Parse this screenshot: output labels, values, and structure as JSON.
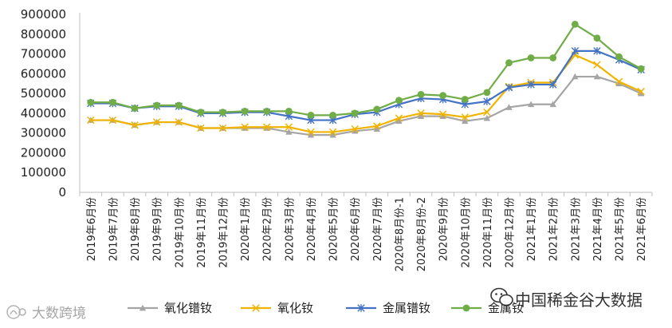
{
  "chart_data": {
    "type": "line",
    "title": "",
    "xlabel": "",
    "ylabel": "",
    "ylim": [
      0,
      900000
    ],
    "yticks": [
      "0",
      "100000",
      "200000",
      "300000",
      "400000",
      "500000",
      "600000",
      "700000",
      "800000",
      "900000"
    ],
    "grid": false,
    "legend_position": "bottom",
    "categories": [
      "2019年6月份",
      "2019年7月份",
      "2019年8月份",
      "2019年9月份",
      "2019年10月份",
      "2019年11月份",
      "2019年12月份",
      "2020年1月份",
      "2020年2月份",
      "2020年3月份",
      "2020年4月份",
      "2020年5月份",
      "2020年6月份",
      "2020年7月份",
      "2020年8月份-1",
      "2020年8月份-2",
      "2020年9月份",
      "2020年10月份",
      "2020年11月份",
      "2020年12月份",
      "2021年1月份",
      "2021年2月份",
      "2021年3月份",
      "2021年4月份",
      "2021年5月份",
      "2021年6月份"
    ],
    "series": [
      {
        "name": "氧化镨钕",
        "color": "#a5a5a5",
        "marker": "triangle",
        "values": [
          365000,
          365000,
          340000,
          355000,
          355000,
          325000,
          325000,
          325000,
          325000,
          305000,
          290000,
          290000,
          310000,
          320000,
          360000,
          385000,
          385000,
          360000,
          375000,
          430000,
          445000,
          445000,
          585000,
          585000,
          550000,
          500000
        ]
      },
      {
        "name": "氧化钕",
        "color": "#f0b400",
        "marker": "x",
        "values": [
          365000,
          365000,
          340000,
          355000,
          355000,
          325000,
          325000,
          330000,
          330000,
          330000,
          305000,
          305000,
          320000,
          335000,
          375000,
          400000,
          395000,
          380000,
          405000,
          535000,
          555000,
          555000,
          695000,
          645000,
          560000,
          510000
        ]
      },
      {
        "name": "金属镨钕",
        "color": "#4472c4",
        "marker": "star",
        "values": [
          450000,
          450000,
          425000,
          435000,
          435000,
          400000,
          400000,
          405000,
          405000,
          385000,
          365000,
          365000,
          395000,
          405000,
          445000,
          475000,
          470000,
          445000,
          460000,
          530000,
          545000,
          545000,
          715000,
          715000,
          670000,
          620000
        ]
      },
      {
        "name": "金属钕",
        "color": "#70ad47",
        "marker": "circle",
        "values": [
          455000,
          455000,
          425000,
          440000,
          440000,
          405000,
          405000,
          410000,
          410000,
          410000,
          390000,
          390000,
          400000,
          420000,
          465000,
          495000,
          490000,
          470000,
          505000,
          655000,
          680000,
          680000,
          850000,
          780000,
          685000,
          625000
        ]
      }
    ]
  },
  "watermarks": {
    "right_text": "中国稀金谷大数据",
    "left_text": "大数跨境"
  }
}
